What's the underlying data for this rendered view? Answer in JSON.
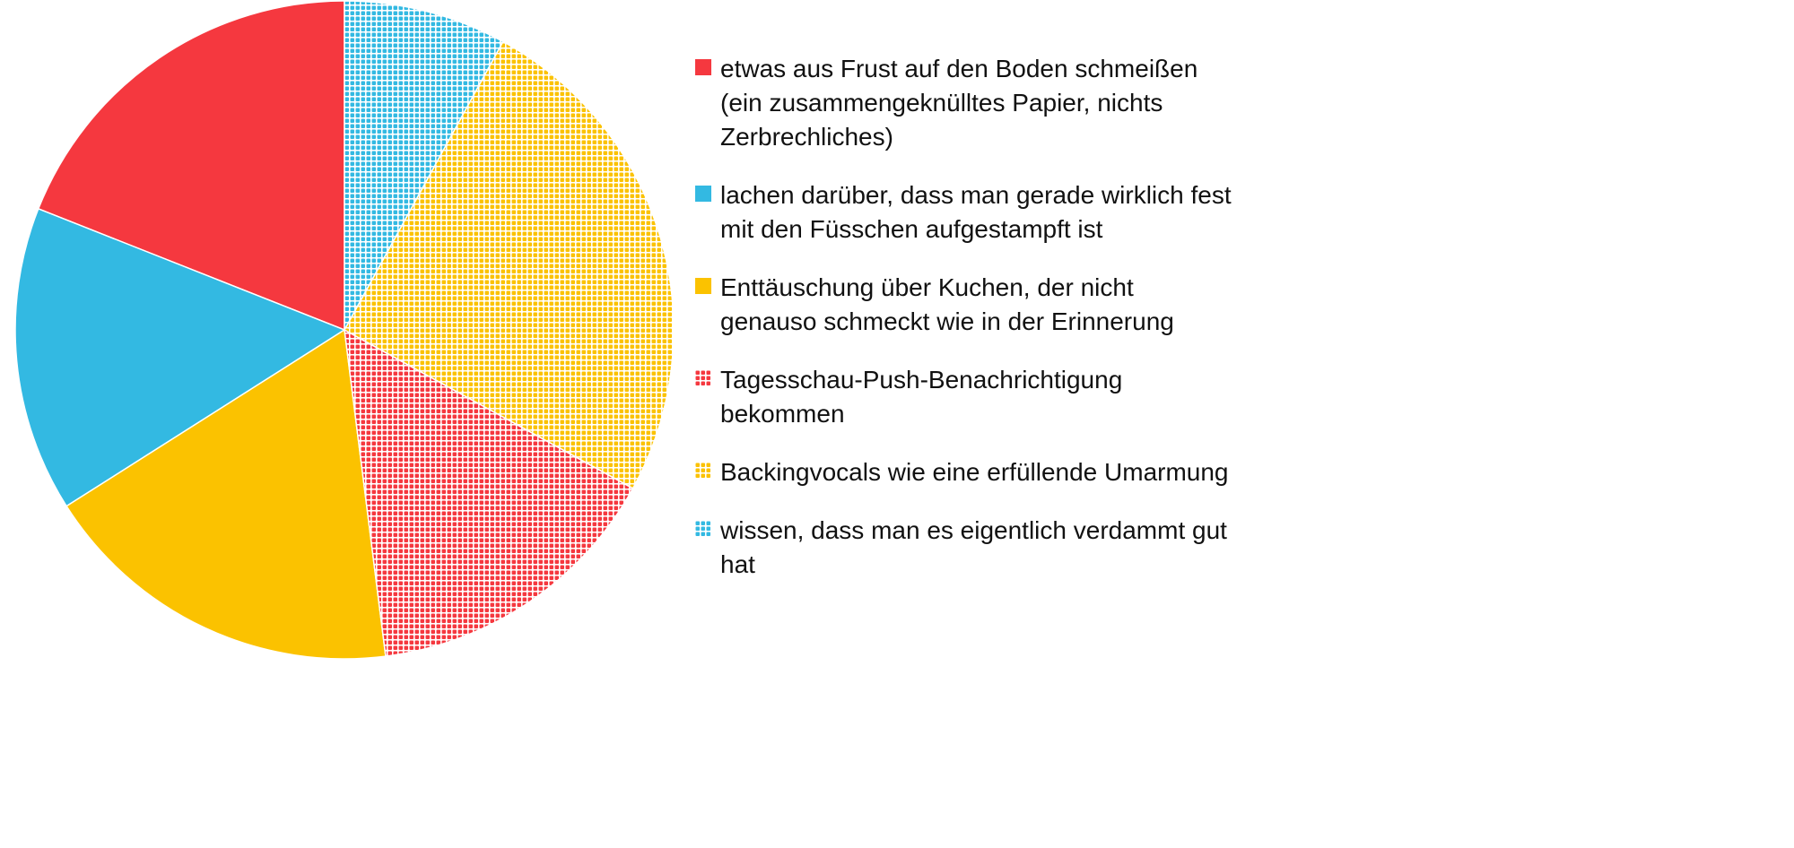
{
  "chart_data": {
    "type": "pie",
    "title": "",
    "direction": "counterclockwise",
    "start": "top",
    "legend_position": "right",
    "slices": [
      {
        "label": "etwas aus Frust auf den Boden schmeißen (ein zusammengeknülltes Papier, nichts Zerbrechliches)",
        "value": 19,
        "color": "#f5383f",
        "pattern": "solid"
      },
      {
        "label": "lachen darüber, dass man gerade wirklich fest mit den Füsschen aufgestampft ist",
        "value": 15,
        "color": "#33b9e2",
        "pattern": "solid"
      },
      {
        "label": "Enttäuschung über Kuchen, der nicht genauso schmeckt wie in der Erinnerung",
        "value": 18,
        "color": "#fbc200",
        "pattern": "solid"
      },
      {
        "label": "Tagesschau-Push-Benachrichtigung bekommen",
        "value": 15,
        "color": "#f5383f",
        "pattern": "dots"
      },
      {
        "label": "Backingvocals wie eine erfüllende Umarmung",
        "value": 25,
        "color": "#fbc200",
        "pattern": "dots"
      },
      {
        "label": "wissen, dass man es eigentlich verdammt gut hat",
        "value": 8,
        "color": "#33b9e2",
        "pattern": "dots"
      }
    ]
  }
}
